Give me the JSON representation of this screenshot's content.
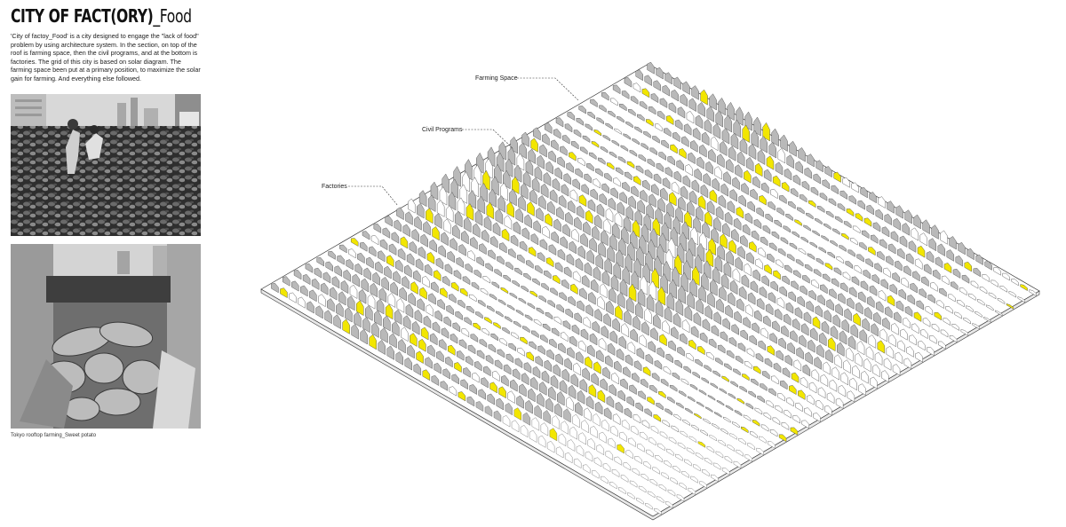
{
  "header": {
    "title_main": "CITY OF FACT(ORY)",
    "title_sub": "_Food"
  },
  "description": "'City of factoy_Food' is a city designed to engage the \"lack of food\" problem by using architecture system.  In the section, on top of the roof is farming space, then the civil programs, and at the bottom is factories.  The grid of this city is based on solar diagram. The farming space been put at a primary position, to maximize the solar gain for farming. And everything else followed.",
  "photos": {
    "caption": "Tokyo rooftop farming_Sweet potato"
  },
  "diagram": {
    "labels": {
      "farming": "Farming Space",
      "civil": "Civil Programs",
      "factories": "Factories"
    },
    "colors": {
      "accent": "#f2e600",
      "roof": "#b9b9b9",
      "line": "#555555"
    }
  }
}
